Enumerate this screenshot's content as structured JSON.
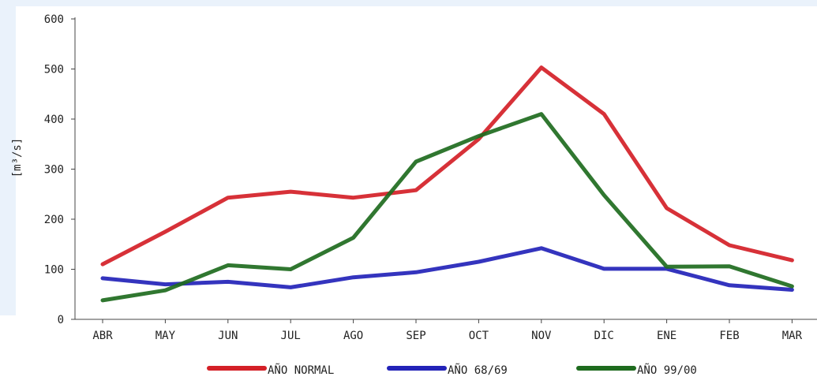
{
  "chart_data": {
    "type": "line",
    "title": "",
    "xlabel": "",
    "ylabel": "[m³/s]",
    "categories": [
      "ABR",
      "MAY",
      "JUN",
      "JUL",
      "AGO",
      "SEP",
      "OCT",
      "NOV",
      "DIC",
      "ENE",
      "FEB",
      "MAR"
    ],
    "ylim": [
      0,
      600
    ],
    "yticks": [
      "0",
      "100",
      "200",
      "300",
      "400",
      "500",
      "600"
    ],
    "grid": false,
    "legend_position": "bottom",
    "series": [
      {
        "name": "AÑO NORMAL",
        "color": "#d42027",
        "values": [
          110,
          175,
          243,
          255,
          243,
          258,
          360,
          503,
          410,
          222,
          148,
          118
        ]
      },
      {
        "name": "AÑO 68/69",
        "color": "#2323b8",
        "values": [
          82,
          70,
          75,
          64,
          84,
          94,
          115,
          142,
          101,
          101,
          68,
          59
        ]
      },
      {
        "name": "AÑO 99/00",
        "color": "#1e6b1e",
        "values": [
          38,
          58,
          108,
          100,
          163,
          315,
          366,
          410,
          248,
          105,
          106,
          66
        ]
      }
    ]
  }
}
